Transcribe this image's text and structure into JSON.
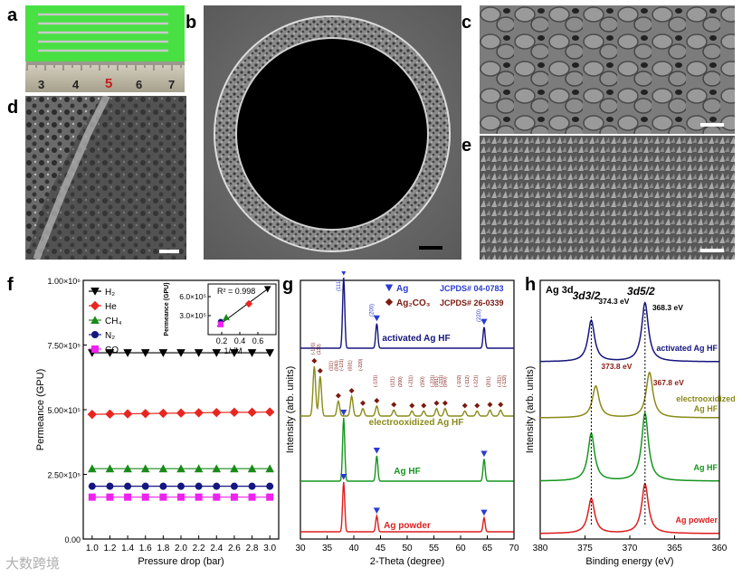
{
  "panels": {
    "a": {
      "letter": "a",
      "ruler_ticks": [
        "3",
        "4",
        "5",
        "6",
        "7"
      ]
    },
    "b": {
      "letter": "b"
    },
    "c": {
      "letter": "c"
    },
    "d": {
      "letter": "d"
    },
    "e": {
      "letter": "e"
    },
    "f": {
      "letter": "f"
    },
    "g": {
      "letter": "g"
    },
    "h": {
      "letter": "h"
    }
  },
  "colors": {
    "H2": "#000000",
    "He": "#e8261f",
    "CH4": "#1a8a1a",
    "N2": "#151580",
    "CO": "#ee22ee",
    "activated": "#15157d",
    "electro": "#8a8a1a",
    "aghf": "#15961e",
    "powder": "#dd1d1d",
    "ag_marker": "#2a3bd3",
    "ag2co3_marker": "#7a1a10"
  },
  "chart_data": [
    {
      "type": "line",
      "panel": "f",
      "xlabel": "Pressure drop (bar)",
      "ylabel": "Permeance (GPU)",
      "xlim": [
        0.9,
        3.1
      ],
      "ylim": [
        0,
        1000000
      ],
      "xticks": [
        "1.0",
        "1.2",
        "1.4",
        "1.6",
        "1.8",
        "2.0",
        "2.2",
        "2.4",
        "2.6",
        "2.8",
        "3.0"
      ],
      "yticks": [
        "0.00",
        "2.50×10⁵",
        "5.00×10⁵",
        "7.50×10⁵",
        "1.00×10⁶"
      ],
      "x": [
        1.0,
        1.2,
        1.4,
        1.6,
        1.8,
        2.0,
        2.2,
        2.4,
        2.6,
        2.8,
        3.0
      ],
      "series": [
        {
          "name": "H₂",
          "marker": "triangle-down",
          "color": "#000000",
          "values": [
            720000,
            720000,
            720000,
            720000,
            720000,
            720000,
            720000,
            720000,
            720000,
            720000,
            720000
          ]
        },
        {
          "name": "He",
          "marker": "diamond",
          "color": "#e8261f",
          "values": [
            482000,
            483000,
            484000,
            485000,
            486000,
            487000,
            488000,
            489000,
            490000,
            490000,
            491000
          ]
        },
        {
          "name": "CH₄",
          "marker": "triangle-up",
          "color": "#1a8a1a",
          "values": [
            272000,
            272000,
            272000,
            272000,
            272000,
            272000,
            272000,
            272000,
            272000,
            272000,
            272000
          ]
        },
        {
          "name": "N₂",
          "marker": "circle",
          "color": "#151580",
          "values": [
            204000,
            204000,
            204000,
            204000,
            204000,
            204000,
            204000,
            204000,
            204000,
            204000,
            204000
          ]
        },
        {
          "name": "CO",
          "marker": "square",
          "color": "#ee22ee",
          "values": [
            162000,
            162000,
            162000,
            162000,
            162000,
            162000,
            162000,
            162000,
            162000,
            162000,
            162000
          ]
        }
      ],
      "legend": "top-left",
      "inset": {
        "xlabel": "1/√M",
        "ylabel": "Permeance (GPU)",
        "xticks": [
          "0.2",
          "0.4",
          "0.6"
        ],
        "yticks": [
          "3.0×10⁵",
          "6.0×10⁵"
        ],
        "annotation": "R² = 0.998",
        "points": [
          [
            0.707,
            720000
          ],
          [
            0.5,
            487000
          ],
          [
            0.25,
            272000
          ],
          [
            0.189,
            204000
          ],
          [
            0.189,
            162000
          ]
        ]
      }
    },
    {
      "type": "line",
      "panel": "g",
      "xlabel": "2-Theta (degree)",
      "ylabel": "Intensity (arb. units)",
      "xlim": [
        30,
        70
      ],
      "xticks": [
        "30",
        "35",
        "40",
        "45",
        "50",
        "55",
        "60",
        "65",
        "70"
      ],
      "legend": [
        {
          "label": "Ag",
          "ref": "JCPDS# 04-0783"
        },
        {
          "label": "Ag₂CO₃",
          "ref": "JCPDS# 26-0339"
        }
      ],
      "series": [
        {
          "name": "activated Ag HF",
          "peaks": [
            [
              38.1,
              1.0
            ],
            [
              44.3,
              0.35
            ],
            [
              64.4,
              0.3
            ]
          ]
        },
        {
          "name": "electrooxidized Ag HF",
          "peaks": [
            [
              32.6,
              1.0
            ],
            [
              33.7,
              0.8
            ],
            [
              37.1,
              0.3
            ],
            [
              39.6,
              0.4
            ],
            [
              41.7,
              0.15
            ],
            [
              44.3,
              0.2
            ],
            [
              47.5,
              0.12
            ],
            [
              50.9,
              0.1
            ],
            [
              53.1,
              0.1
            ],
            [
              55.5,
              0.15
            ],
            [
              57.1,
              0.15
            ],
            [
              60.8,
              0.1
            ],
            [
              63.1,
              0.1
            ],
            [
              65.5,
              0.12
            ],
            [
              67.5,
              0.12
            ]
          ]
        },
        {
          "name": "Ag HF",
          "peaks": [
            [
              38.1,
              1.0
            ],
            [
              44.3,
              0.4
            ],
            [
              64.4,
              0.35
            ]
          ]
        },
        {
          "name": "Ag powder",
          "peaks": [
            [
              38.1,
              1.0
            ],
            [
              44.3,
              0.32
            ],
            [
              64.4,
              0.28
            ]
          ]
        }
      ],
      "ag_hkl": [
        "(111)",
        "(200)",
        "(220)"
      ],
      "ag2co3_hkl": [
        "(-101)",
        "(130)",
        "(111)",
        "(040)",
        "(-121)",
        "(031)",
        "(-220)",
        "(-131)",
        "(121)",
        "(200)",
        "(-211)",
        "(150)",
        "(-231)",
        "(051)",
        "(-231)",
        "(060)",
        "(-102)",
        "(-112)",
        "(-121)",
        "(201)",
        "(-311)",
        "(-132)"
      ]
    },
    {
      "type": "line",
      "panel": "h",
      "title": "Ag 3d",
      "xlabel": "Binding energy (eV)",
      "ylabel": "Intensity (arb. units)",
      "xlim": [
        380,
        360
      ],
      "xticks": [
        "380",
        "375",
        "370",
        "365",
        "360"
      ],
      "peak_labels": [
        {
          "label": "3d3/2"
        },
        {
          "label": "3d5/2"
        }
      ],
      "series": [
        {
          "name": "activated Ag HF",
          "peaks": [
            [
              374.3,
              0.7
            ],
            [
              368.3,
              1.0
            ]
          ],
          "labels": [
            "374.3 eV",
            "368.3 eV"
          ]
        },
        {
          "name": "electrooxidized Ag HF",
          "peaks": [
            [
              373.8,
              0.7
            ],
            [
              367.8,
              1.0
            ]
          ],
          "labels": [
            "373.8 eV",
            "367.8 eV"
          ]
        },
        {
          "name": "Ag HF",
          "peaks": [
            [
              374.3,
              0.7
            ],
            [
              368.3,
              1.0
            ]
          ]
        },
        {
          "name": "Ag powder",
          "peaks": [
            [
              374.3,
              0.7
            ],
            [
              368.3,
              1.0
            ]
          ]
        }
      ]
    }
  ],
  "watermark": "大数跨境"
}
